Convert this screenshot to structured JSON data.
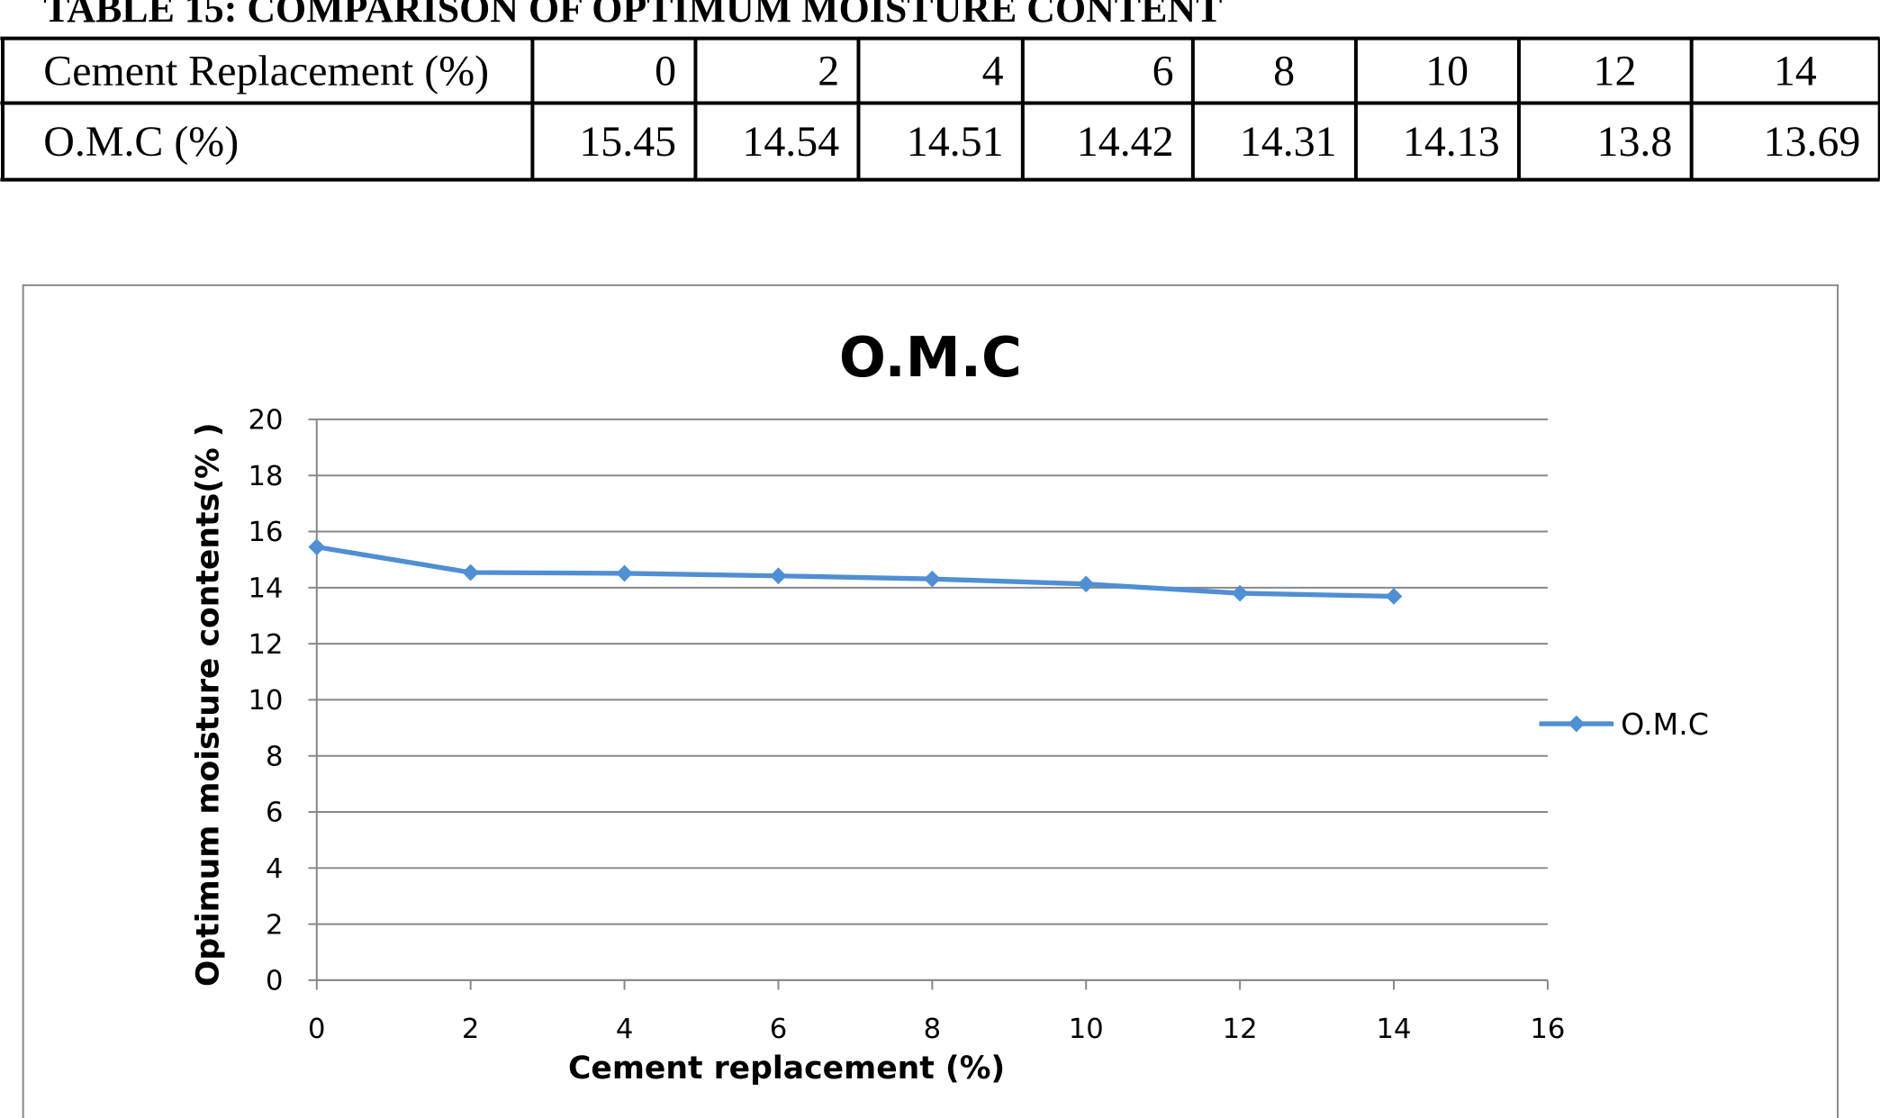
{
  "heading": "TABLE 15: COMPARISON OF OPTIMUM MOISTURE CONTENT",
  "table": {
    "rows": [
      [
        "Cement Replacement (%)",
        0,
        2,
        4,
        6,
        8,
        10,
        12,
        14
      ],
      [
        "O.M.C (%)",
        15.45,
        14.54,
        14.51,
        14.42,
        14.31,
        14.13,
        13.8,
        13.69
      ]
    ]
  },
  "chart_data": {
    "type": "line",
    "title": "O.M.C",
    "x_label": "Cement replacement (%)",
    "y_label": "Optimum moisture contents(% )",
    "x": [
      0,
      2,
      4,
      6,
      8,
      10,
      12,
      14
    ],
    "series": [
      {
        "name": "O.M.C",
        "color": "#4f8fd3",
        "values": [
          15.45,
          14.54,
          14.51,
          14.42,
          14.31,
          14.13,
          13.8,
          13.69
        ]
      }
    ],
    "xlim": [
      0,
      16
    ],
    "xticks": [
      0,
      2,
      4,
      6,
      8,
      10,
      12,
      14,
      16
    ],
    "ylim": [
      0,
      20
    ],
    "yticks": [
      0,
      2,
      4,
      6,
      8,
      10,
      12,
      14,
      16,
      18,
      20
    ],
    "grid": true,
    "legend": "right"
  }
}
